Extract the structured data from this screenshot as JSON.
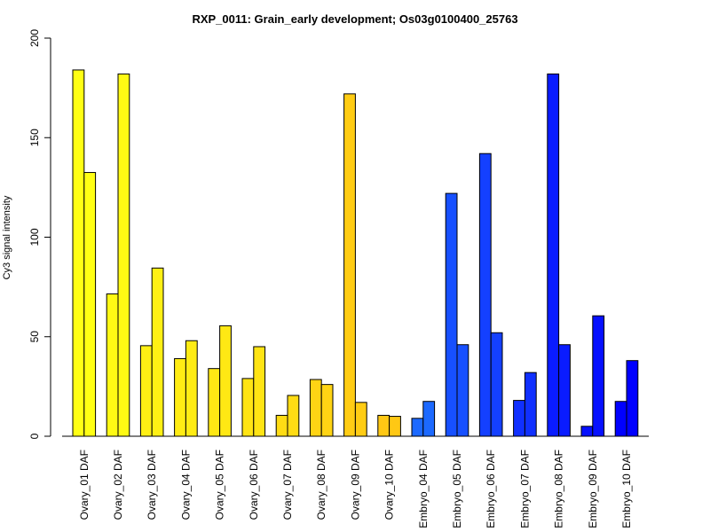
{
  "chart_data": {
    "type": "bar",
    "title": "RXP_0011: Grain_early development; Os03g0100400_25763",
    "xlabel": "",
    "ylabel": "Cy3 signal intensity",
    "ylim": [
      0,
      200
    ],
    "yticks": [
      0,
      50,
      100,
      150,
      200
    ],
    "grid": false,
    "legend": "none",
    "categories": [
      "Ovary_01 DAF",
      "Ovary_02 DAF",
      "Ovary_03 DAF",
      "Ovary_04 DAF",
      "Ovary_05 DAF",
      "Ovary_06 DAF",
      "Ovary_07 DAF",
      "Ovary_08 DAF",
      "Ovary_09 DAF",
      "Ovary_10 DAF",
      "Embryo_04 DAF",
      "Embryo_05 DAF",
      "Embryo_06 DAF",
      "Embryo_07 DAF",
      "Embryo_08 DAF",
      "Embryo_09 DAF",
      "Embryo_10 DAF"
    ],
    "series": [
      {
        "values": [
          184,
          71.5,
          45.5,
          39,
          34,
          29,
          10.5,
          28.5,
          172,
          10.5,
          9,
          122,
          142,
          18,
          182,
          5,
          17.5
        ]
      },
      {
        "values": [
          132.5,
          182,
          84.5,
          48,
          55.5,
          45,
          20.5,
          26,
          17,
          10,
          17.5,
          46,
          52,
          32,
          46,
          60.5,
          38
        ]
      }
    ],
    "colors": [
      "#ffff14",
      "#fffa14",
      "#fff014",
      "#ffec14",
      "#ffe814",
      "#ffe414",
      "#ffdc14",
      "#ffd414",
      "#ffcc14",
      "#ffc814",
      "#1c69ff",
      "#1750ff",
      "#1440ff",
      "#1030ff",
      "#0a1cff",
      "#0610ff",
      "#0000ff"
    ]
  }
}
